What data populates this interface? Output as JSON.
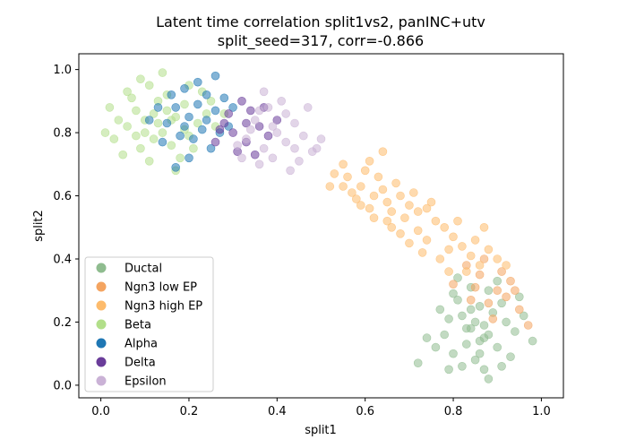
{
  "chart_data": {
    "type": "scatter",
    "title": "Latent time correlation split1vs2, panINC+utv",
    "subtitle": "split_seed=317, corr=-0.866",
    "xlabel": "split1",
    "ylabel": "split2",
    "xlim": [
      -0.05,
      1.05
    ],
    "ylim": [
      -0.04,
      1.05
    ],
    "xticks": [
      0.0,
      0.2,
      0.4,
      0.6,
      0.8,
      1.0
    ],
    "yticks": [
      0.0,
      0.2,
      0.4,
      0.6,
      0.8,
      1.0
    ],
    "xtick_labels": [
      "0.0",
      "0.2",
      "0.4",
      "0.6",
      "0.8",
      "1.0"
    ],
    "ytick_labels": [
      "0.0",
      "0.2",
      "0.4",
      "0.6",
      "0.8",
      "1.0"
    ],
    "grid": false,
    "legend_position": "lower-left",
    "series": [
      {
        "name": "Ductal",
        "color": "#8fbc8f",
        "points": [
          [
            0.84,
            0.18
          ],
          [
            0.87,
            0.15
          ],
          [
            0.82,
            0.22
          ],
          [
            0.9,
            0.12
          ],
          [
            0.86,
            0.25
          ],
          [
            0.8,
            0.1
          ],
          [
            0.92,
            0.2
          ],
          [
            0.85,
            0.08
          ],
          [
            0.78,
            0.16
          ],
          [
            0.88,
            0.3
          ],
          [
            0.83,
            0.13
          ],
          [
            0.91,
            0.26
          ],
          [
            0.86,
            0.1
          ],
          [
            0.81,
            0.27
          ],
          [
            0.94,
            0.17
          ],
          [
            0.79,
            0.21
          ],
          [
            0.87,
            0.05
          ],
          [
            0.89,
            0.23
          ],
          [
            0.84,
            0.31
          ],
          [
            0.76,
            0.12
          ],
          [
            0.93,
            0.09
          ],
          [
            0.82,
            0.06
          ],
          [
            0.85,
            0.2
          ],
          [
            0.88,
            0.16
          ],
          [
            0.8,
            0.29
          ],
          [
            0.9,
            0.33
          ],
          [
            0.96,
            0.22
          ],
          [
            0.77,
            0.24
          ],
          [
            0.86,
            0.14
          ],
          [
            0.83,
            0.18
          ],
          [
            0.74,
            0.15
          ],
          [
            0.98,
            0.14
          ],
          [
            0.72,
            0.07
          ],
          [
            0.88,
            0.02
          ],
          [
            0.81,
            0.34
          ],
          [
            0.95,
            0.28
          ],
          [
            0.84,
            0.24
          ],
          [
            0.87,
            0.19
          ],
          [
            0.79,
            0.05
          ],
          [
            0.91,
            0.06
          ]
        ]
      },
      {
        "name": "Ngn3 low EP",
        "color": "#f4a460",
        "points": [
          [
            0.86,
            0.35
          ],
          [
            0.9,
            0.3
          ],
          [
            0.83,
            0.38
          ],
          [
            0.93,
            0.33
          ],
          [
            0.88,
            0.26
          ],
          [
            0.95,
            0.24
          ],
          [
            0.85,
            0.31
          ],
          [
            0.91,
            0.36
          ],
          [
            0.8,
            0.32
          ],
          [
            0.97,
            0.19
          ],
          [
            0.87,
            0.4
          ],
          [
            0.92,
            0.28
          ],
          [
            0.89,
            0.21
          ],
          [
            0.84,
            0.27
          ],
          [
            0.94,
            0.3
          ]
        ]
      },
      {
        "name": "Ngn3 high EP",
        "color": "#fdbb6c",
        "points": [
          [
            0.56,
            0.66
          ],
          [
            0.59,
            0.63
          ],
          [
            0.62,
            0.6
          ],
          [
            0.65,
            0.58
          ],
          [
            0.68,
            0.6
          ],
          [
            0.6,
            0.68
          ],
          [
            0.64,
            0.62
          ],
          [
            0.57,
            0.61
          ],
          [
            0.66,
            0.55
          ],
          [
            0.7,
            0.57
          ],
          [
            0.53,
            0.67
          ],
          [
            0.61,
            0.56
          ],
          [
            0.67,
            0.64
          ],
          [
            0.72,
            0.55
          ],
          [
            0.55,
            0.63
          ],
          [
            0.63,
            0.66
          ],
          [
            0.58,
            0.59
          ],
          [
            0.69,
            0.53
          ],
          [
            0.74,
            0.56
          ],
          [
            0.52,
            0.63
          ],
          [
            0.61,
            0.71
          ],
          [
            0.65,
            0.52
          ],
          [
            0.76,
            0.52
          ],
          [
            0.59,
            0.57
          ],
          [
            0.71,
            0.61
          ],
          [
            0.78,
            0.5
          ],
          [
            0.8,
            0.47
          ],
          [
            0.82,
            0.44
          ],
          [
            0.84,
            0.41
          ],
          [
            0.79,
            0.43
          ],
          [
            0.86,
            0.38
          ],
          [
            0.74,
            0.46
          ],
          [
            0.77,
            0.4
          ],
          [
            0.83,
            0.36
          ],
          [
            0.7,
            0.45
          ],
          [
            0.81,
            0.52
          ],
          [
            0.88,
            0.43
          ],
          [
            0.66,
            0.5
          ],
          [
            0.72,
            0.49
          ],
          [
            0.85,
            0.46
          ],
          [
            0.75,
            0.58
          ],
          [
            0.68,
            0.48
          ],
          [
            0.9,
            0.4
          ],
          [
            0.87,
            0.5
          ],
          [
            0.62,
            0.53
          ],
          [
            0.64,
            0.74
          ],
          [
            0.55,
            0.7
          ],
          [
            0.73,
            0.42
          ],
          [
            0.79,
            0.36
          ],
          [
            0.92,
            0.38
          ]
        ]
      },
      {
        "name": "Beta",
        "color": "#b2df8a",
        "points": [
          [
            0.1,
            0.84
          ],
          [
            0.14,
            0.8
          ],
          [
            0.08,
            0.87
          ],
          [
            0.17,
            0.85
          ],
          [
            0.12,
            0.78
          ],
          [
            0.06,
            0.82
          ],
          [
            0.19,
            0.89
          ],
          [
            0.15,
            0.92
          ],
          [
            0.09,
            0.75
          ],
          [
            0.2,
            0.79
          ],
          [
            0.04,
            0.84
          ],
          [
            0.13,
            0.9
          ],
          [
            0.22,
            0.83
          ],
          [
            0.11,
            0.95
          ],
          [
            0.16,
            0.76
          ],
          [
            0.03,
            0.78
          ],
          [
            0.18,
            0.72
          ],
          [
            0.07,
            0.91
          ],
          [
            0.24,
            0.86
          ],
          [
            0.12,
            0.86
          ],
          [
            0.02,
            0.88
          ],
          [
            0.09,
            0.97
          ],
          [
            0.21,
            0.75
          ],
          [
            0.14,
            0.99
          ],
          [
            0.05,
            0.73
          ],
          [
            0.25,
            0.9
          ],
          [
            0.17,
            0.68
          ],
          [
            0.1,
            0.8
          ],
          [
            0.23,
            0.93
          ],
          [
            0.13,
            0.83
          ],
          [
            0.08,
            0.79
          ],
          [
            0.19,
            0.81
          ],
          [
            0.15,
            0.87
          ],
          [
            0.01,
            0.8
          ],
          [
            0.26,
            0.82
          ],
          [
            0.11,
            0.71
          ],
          [
            0.2,
            0.95
          ],
          [
            0.06,
            0.93
          ],
          [
            0.16,
            0.84
          ],
          [
            0.28,
            0.86
          ]
        ]
      },
      {
        "name": "Alpha",
        "color": "#1f77b4",
        "points": [
          [
            0.2,
            0.85
          ],
          [
            0.23,
            0.81
          ],
          [
            0.17,
            0.88
          ],
          [
            0.26,
            0.87
          ],
          [
            0.21,
            0.78
          ],
          [
            0.15,
            0.83
          ],
          [
            0.24,
            0.92
          ],
          [
            0.19,
            0.94
          ],
          [
            0.27,
            0.8
          ],
          [
            0.22,
            0.96
          ],
          [
            0.13,
            0.88
          ],
          [
            0.25,
            0.75
          ],
          [
            0.18,
            0.79
          ],
          [
            0.28,
            0.91
          ],
          [
            0.16,
            0.92
          ],
          [
            0.2,
            0.72
          ],
          [
            0.24,
            0.84
          ],
          [
            0.3,
            0.88
          ],
          [
            0.14,
            0.77
          ],
          [
            0.22,
            0.89
          ],
          [
            0.17,
            0.69
          ],
          [
            0.26,
            0.98
          ],
          [
            0.11,
            0.84
          ],
          [
            0.29,
            0.82
          ],
          [
            0.19,
            0.82
          ]
        ]
      },
      {
        "name": "Delta",
        "color": "#6a3d9a",
        "points": [
          [
            0.3,
            0.8
          ],
          [
            0.33,
            0.77
          ],
          [
            0.28,
            0.83
          ],
          [
            0.36,
            0.82
          ],
          [
            0.31,
            0.74
          ],
          [
            0.34,
            0.87
          ],
          [
            0.38,
            0.79
          ],
          [
            0.26,
            0.77
          ],
          [
            0.32,
            0.9
          ],
          [
            0.29,
            0.86
          ],
          [
            0.35,
            0.73
          ],
          [
            0.4,
            0.84
          ],
          [
            0.27,
            0.81
          ],
          [
            0.37,
            0.88
          ],
          [
            0.33,
            0.83
          ]
        ]
      },
      {
        "name": "Epsilon",
        "color": "#cab2d6",
        "points": [
          [
            0.33,
            0.78
          ],
          [
            0.37,
            0.75
          ],
          [
            0.4,
            0.8
          ],
          [
            0.35,
            0.84
          ],
          [
            0.42,
            0.77
          ],
          [
            0.39,
            0.72
          ],
          [
            0.44,
            0.83
          ],
          [
            0.31,
            0.76
          ],
          [
            0.38,
            0.88
          ],
          [
            0.46,
            0.79
          ],
          [
            0.36,
            0.7
          ],
          [
            0.42,
            0.86
          ],
          [
            0.34,
            0.81
          ],
          [
            0.48,
            0.74
          ],
          [
            0.41,
            0.9
          ],
          [
            0.45,
            0.71
          ],
          [
            0.49,
            0.75
          ],
          [
            0.37,
            0.93
          ],
          [
            0.43,
            0.68
          ],
          [
            0.5,
            0.78
          ],
          [
            0.32,
            0.72
          ],
          [
            0.47,
            0.88
          ],
          [
            0.39,
            0.82
          ],
          [
            0.44,
            0.75
          ],
          [
            0.36,
            0.87
          ]
        ]
      }
    ],
    "legend": [
      {
        "label": "Ductal",
        "color": "#8fbc8f"
      },
      {
        "label": "Ngn3 low EP",
        "color": "#f4a460"
      },
      {
        "label": "Ngn3 high EP",
        "color": "#fdbb6c"
      },
      {
        "label": "Beta",
        "color": "#b2df8a"
      },
      {
        "label": "Alpha",
        "color": "#1f77b4"
      },
      {
        "label": "Delta",
        "color": "#6a3d9a"
      },
      {
        "label": "Epsilon",
        "color": "#cab2d6"
      }
    ]
  }
}
